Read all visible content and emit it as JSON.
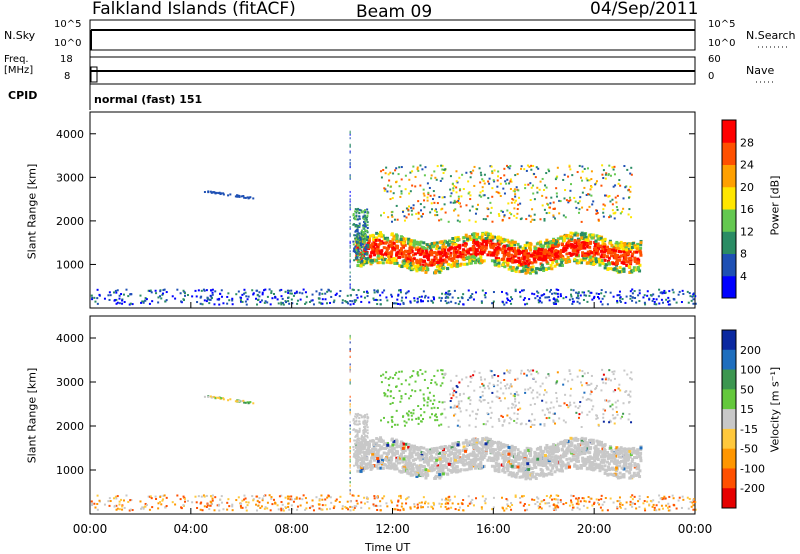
{
  "header": {
    "station": "Falkland Islands (fitACF)",
    "beam": "Beam 09",
    "date": "04/Sep/2011"
  },
  "strips": {
    "nsky_label": "N.Sky",
    "nsky_ticks": [
      "10^5",
      "10^0"
    ],
    "nsearch_label": "N.Search",
    "nsearch_ticks": [
      "10^5",
      "10^0"
    ],
    "freq_label_line1": "Freq.",
    "freq_label_line2": "[MHz]",
    "freq_ticks": [
      "18",
      "8"
    ],
    "nave_label": "Nave",
    "nave_ticks": [
      "60",
      "0"
    ],
    "cpid_label": "CPID",
    "cpid_value": "normal (fast) 151"
  },
  "chart_data": [
    {
      "type": "heatmap",
      "name": "power",
      "ylabel": "Slant Range [km]",
      "xlabel": "",
      "ylim": [
        0,
        4500
      ],
      "yticks": [
        1000,
        2000,
        3000,
        4000
      ],
      "colorbar": {
        "label": "Power [dB]",
        "ticks": [
          "4",
          "8",
          "12",
          "16",
          "20",
          "24",
          "28"
        ],
        "colors": [
          "#0000ff",
          "#1e50b4",
          "#2a8c64",
          "#64c850",
          "#ffe600",
          "#ffa000",
          "#ff5000",
          "#ff0000"
        ]
      }
    },
    {
      "type": "heatmap",
      "name": "velocity",
      "ylabel": "Slant Range [km]",
      "xlabel": "Time UT",
      "ylim": [
        0,
        4500
      ],
      "yticks": [
        1000,
        2000,
        3000,
        4000
      ],
      "xticks": [
        "00:00",
        "04:00",
        "08:00",
        "12:00",
        "16:00",
        "20:00",
        "00:00"
      ],
      "colorbar": {
        "label": "Velocity [m s⁻¹]",
        "ticks": [
          "200",
          "100",
          "50",
          "15",
          "-15",
          "-50",
          "-100",
          "-200"
        ],
        "colors": [
          "#0a28a0",
          "#1e6ebe",
          "#3c9650",
          "#64c83c",
          "#c8c8c8",
          "#ffc83c",
          "#ff9600",
          "#ff5000",
          "#e60000"
        ]
      }
    }
  ]
}
